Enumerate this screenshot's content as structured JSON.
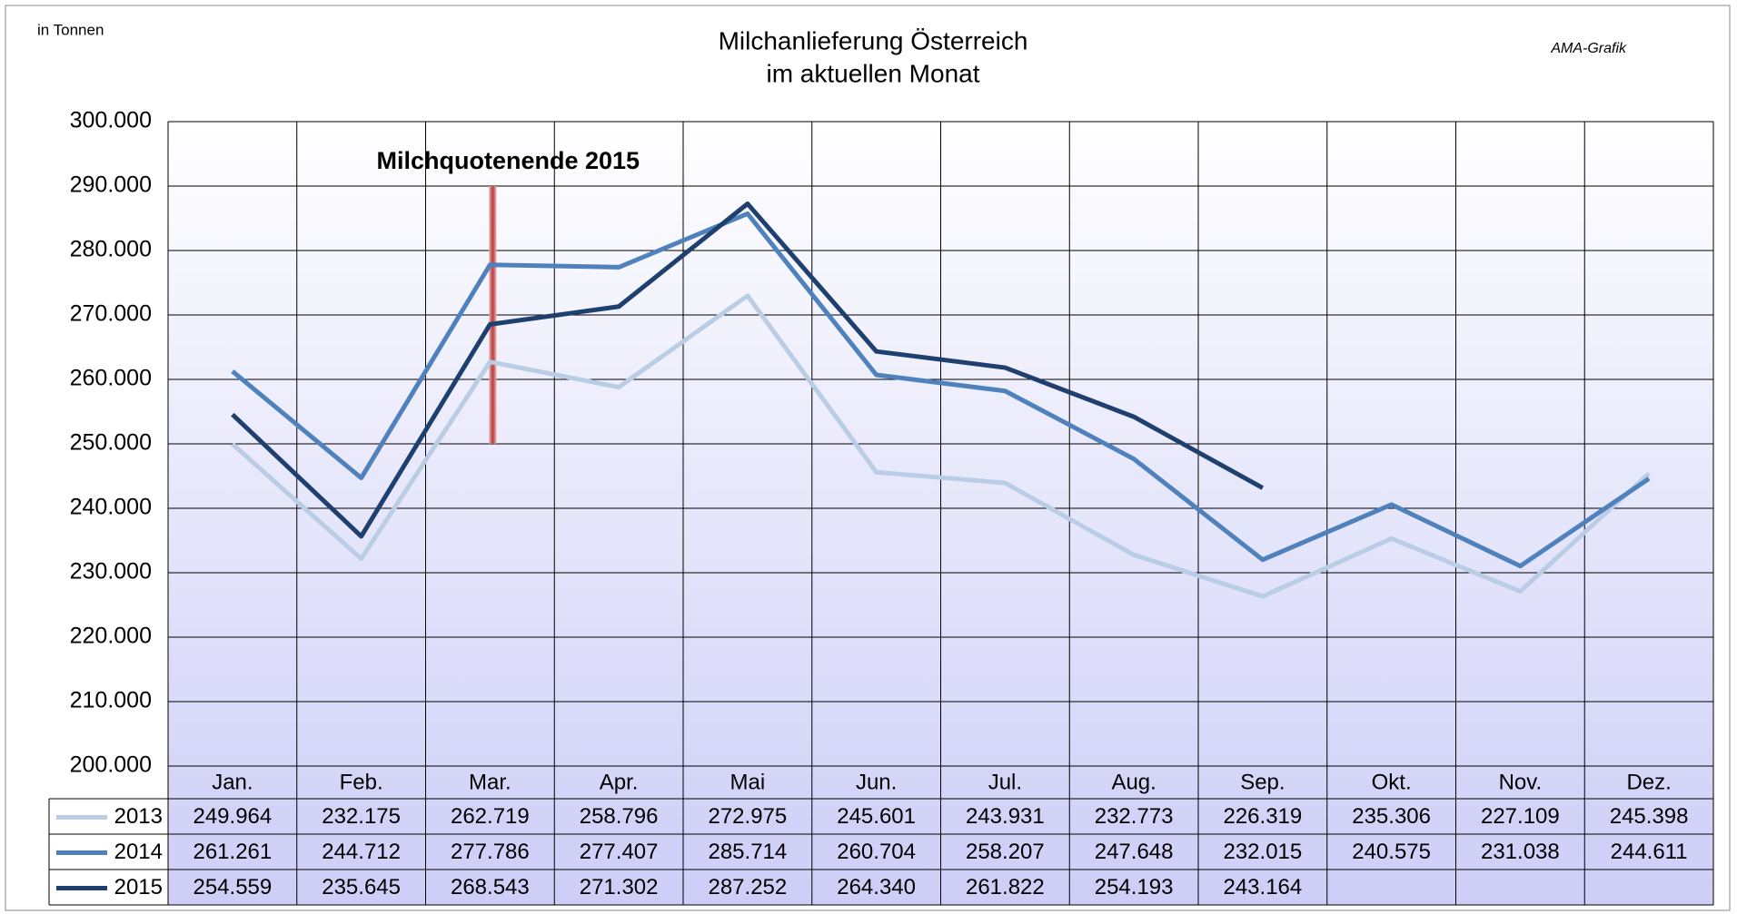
{
  "chart_data": {
    "type": "line",
    "title": [
      "Milchanlieferung Österreich",
      "im aktuellen Monat"
    ],
    "unit_label": "in Tonnen",
    "source": "AMA-Grafik",
    "annotation": "Milchquotenende 2015",
    "annotation_color": "#c0504d",
    "categories": [
      "Jan.",
      "Feb.",
      "Mar.",
      "Apr.",
      "Mai",
      "Jun.",
      "Jul.",
      "Aug.",
      "Sep.",
      "Okt.",
      "Nov.",
      "Dez."
    ],
    "series": [
      {
        "name": "2013",
        "color": "#b9cde5",
        "values": [
          249964,
          232175,
          262719,
          258796,
          272975,
          245601,
          243931,
          232773,
          226319,
          235306,
          227109,
          245398
        ],
        "value_labels": [
          "249.964",
          "232.175",
          "262.719",
          "258.796",
          "272.975",
          "245.601",
          "243.931",
          "232.773",
          "226.319",
          "235.306",
          "227.109",
          "245.398"
        ]
      },
      {
        "name": "2014",
        "color": "#4f81bd",
        "values": [
          261261,
          244712,
          277786,
          277407,
          285714,
          260704,
          258207,
          247648,
          232015,
          240575,
          231038,
          244611
        ],
        "value_labels": [
          "261.261",
          "244.712",
          "277.786",
          "277.407",
          "285.714",
          "260.704",
          "258.207",
          "247.648",
          "232.015",
          "240.575",
          "231.038",
          "244.611"
        ]
      },
      {
        "name": "2015",
        "color": "#1f3f6e",
        "values": [
          254559,
          235645,
          268543,
          271302,
          287252,
          264340,
          261822,
          254193,
          243164,
          null,
          null,
          null
        ],
        "value_labels": [
          "254.559",
          "235.645",
          "268.543",
          "271.302",
          "287.252",
          "264.340",
          "261.822",
          "254.193",
          "243.164",
          null,
          null,
          null
        ]
      }
    ],
    "ylim": [
      200000,
      300000
    ],
    "yticks": [
      {
        "value": 200000,
        "label": "200.000"
      },
      {
        "value": 210000,
        "label": "210.000"
      },
      {
        "value": 220000,
        "label": "220.000"
      },
      {
        "value": 230000,
        "label": "230.000"
      },
      {
        "value": 240000,
        "label": "240.000"
      },
      {
        "value": 250000,
        "label": "250.000"
      },
      {
        "value": 260000,
        "label": "260.000"
      },
      {
        "value": 270000,
        "label": "270.000"
      },
      {
        "value": 280000,
        "label": "280.000"
      },
      {
        "value": 290000,
        "label": "290.000"
      },
      {
        "value": 300000,
        "label": "300.000"
      }
    ],
    "grid": true
  }
}
